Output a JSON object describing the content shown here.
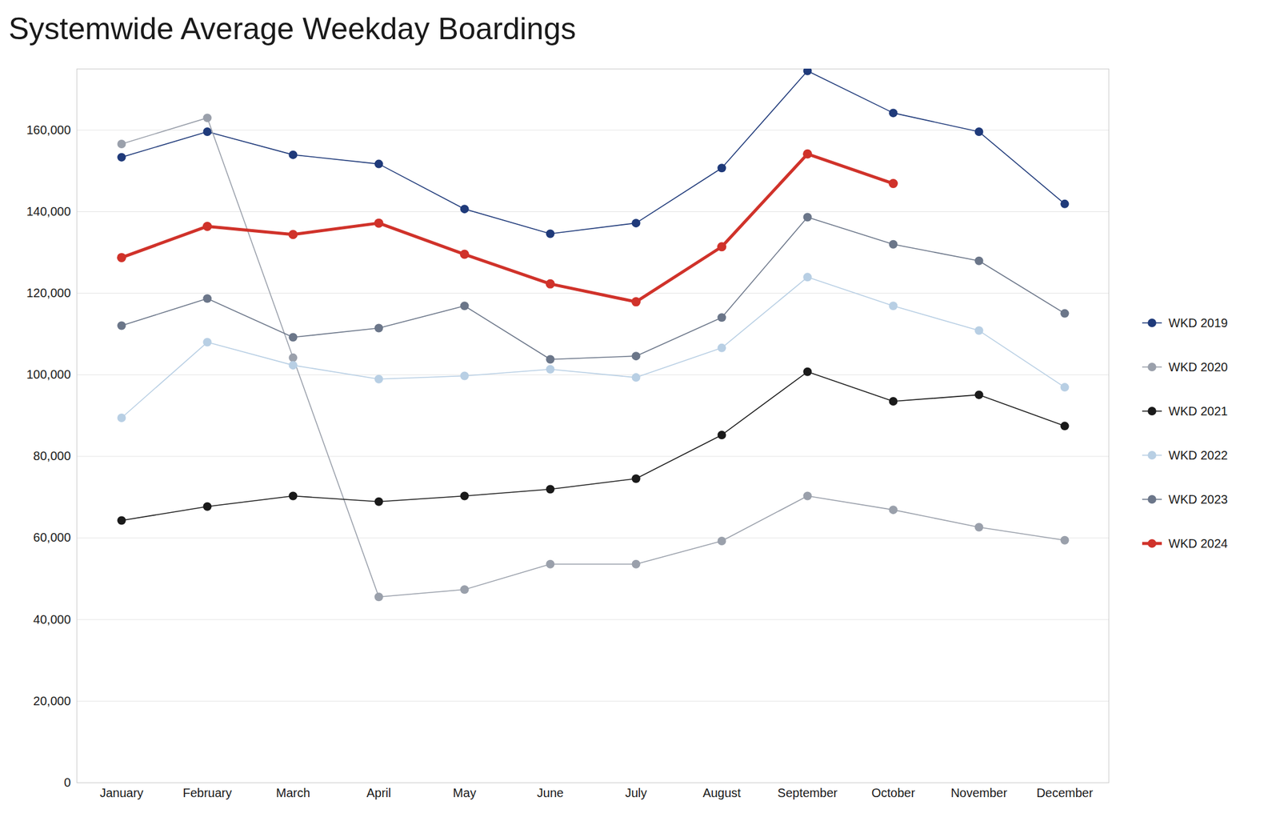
{
  "chart_data": {
    "type": "line",
    "title": "Systemwide Average Weekday Boardings",
    "categories": [
      "January",
      "February",
      "March",
      "April",
      "May",
      "June",
      "July",
      "August",
      "September",
      "October",
      "November",
      "December"
    ],
    "series": [
      {
        "name": "WKD 2019",
        "color": "#1f3a7a",
        "values": [
          153350,
          159600,
          153950,
          151700,
          140650,
          134600,
          137200,
          150700,
          174500,
          164200,
          159600,
          141900
        ]
      },
      {
        "name": "WKD 2020",
        "color": "#9aa0ab",
        "values": [
          156600,
          163000,
          104200,
          45550,
          47350,
          53600,
          53600,
          59250,
          70300,
          66900,
          62650,
          59450
        ]
      },
      {
        "name": "WKD 2021",
        "color": "#1a1a1a",
        "values": [
          64300,
          67700,
          70300,
          68900,
          70300,
          71950,
          74550,
          85250,
          100750,
          93500,
          95100,
          87450
        ]
      },
      {
        "name": "WKD 2022",
        "color": "#b8cfe4",
        "values": [
          89450,
          108000,
          102350,
          98950,
          99750,
          101350,
          99350,
          106600,
          123950,
          116900,
          110850,
          96950
        ]
      },
      {
        "name": "WKD 2023",
        "color": "#6b7689",
        "values": [
          112050,
          118700,
          109200,
          111450,
          116900,
          103800,
          104600,
          114050,
          138650,
          132000,
          127950,
          115050
        ]
      },
      {
        "name": "WKD 2024",
        "color": "#d0322a",
        "values": [
          128750,
          136400,
          134400,
          137200,
          129550,
          122300,
          117900,
          131400,
          154150,
          146900,
          null,
          null
        ]
      }
    ],
    "ylim": [
      0,
      175000
    ],
    "yticks": [
      0,
      {
        "value": 20000,
        "label": "20,000"
      },
      {
        "value": 40000,
        "label": "40,000"
      },
      {
        "value": 60000,
        "label": "60,000"
      },
      {
        "value": 80000,
        "label": "80,000"
      },
      {
        "value": 100000,
        "label": "100,000"
      },
      {
        "value": 120000,
        "label": "120,000"
      },
      {
        "value": 140000,
        "label": "140,000"
      },
      {
        "value": 160000,
        "label": "160,000"
      }
    ],
    "grid": true,
    "legend": "right",
    "marker": "circle"
  }
}
